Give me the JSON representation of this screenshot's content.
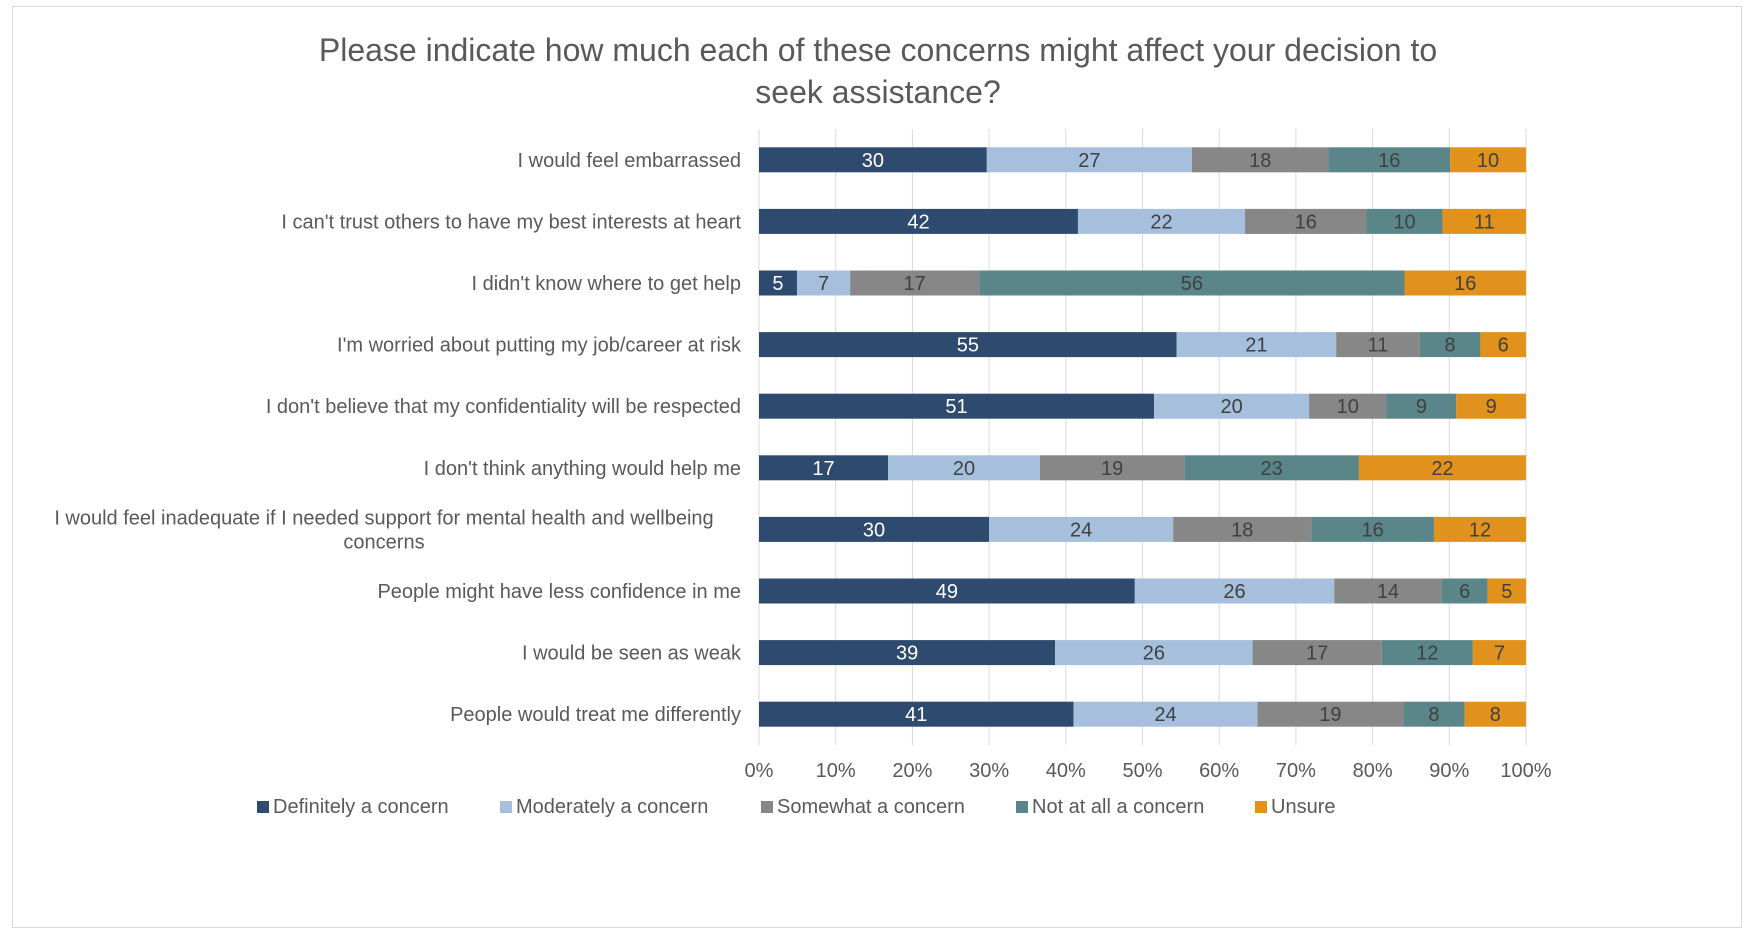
{
  "chart_data": {
    "type": "bar",
    "orientation": "horizontal",
    "stacked": "percent",
    "title": "Please indicate how much each of these concerns might affect your decision to\nseek assistance?",
    "categories": [
      "I would feel embarrassed",
      "I can't trust others to have my best interests at heart",
      "I didn't know where to get help",
      "I'm worried about putting my job/career at risk",
      "I don't believe that my confidentiality will be respected",
      "I don't think anything would help me",
      "I would feel inadequate if I needed support for mental health and wellbeing\nconcerns",
      "People might have less confidence in me",
      "I would be seen as weak",
      "People would treat me differently"
    ],
    "series": [
      {
        "name": "Definitely a concern",
        "color": "#2e4a6e",
        "label_color": "#ffffff",
        "values": [
          30,
          42,
          5,
          55,
          51,
          17,
          30,
          49,
          39,
          41
        ]
      },
      {
        "name": "Moderately a concern",
        "color": "#a6bfdc",
        "label_color": "#404040",
        "values": [
          27,
          22,
          7,
          21,
          20,
          20,
          24,
          26,
          26,
          24
        ]
      },
      {
        "name": "Somewhat a concern",
        "color": "#878787",
        "label_color": "#404040",
        "values": [
          18,
          16,
          17,
          11,
          10,
          19,
          18,
          14,
          17,
          19
        ]
      },
      {
        "name": "Not at all a concern",
        "color": "#5b8689",
        "label_color": "#404040",
        "values": [
          16,
          10,
          56,
          8,
          9,
          23,
          16,
          6,
          12,
          8
        ]
      },
      {
        "name": "Unsure",
        "color": "#e0921c",
        "label_color": "#404040",
        "values": [
          10,
          11,
          16,
          6,
          9,
          22,
          12,
          5,
          7,
          8
        ]
      }
    ],
    "x_ticks": [
      "0%",
      "10%",
      "20%",
      "30%",
      "40%",
      "50%",
      "60%",
      "70%",
      "80%",
      "90%",
      "100%"
    ],
    "xlim": [
      0,
      100
    ],
    "grid": true,
    "legend_position": "bottom"
  }
}
